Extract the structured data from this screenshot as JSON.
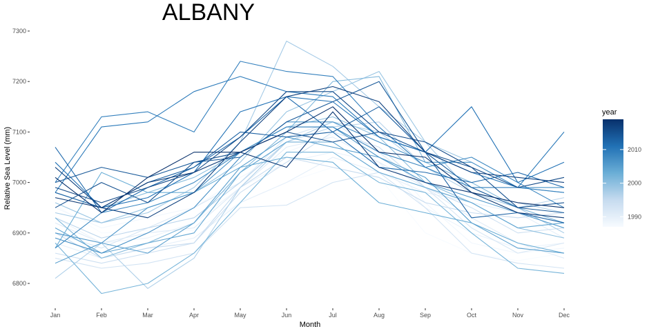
{
  "chart_data": {
    "type": "line",
    "title": "ALBANY",
    "xlabel": "Month",
    "ylabel": "Relative Sea Level (mm)",
    "categories": [
      "Jan",
      "Feb",
      "Mar",
      "Apr",
      "May",
      "Jun",
      "Jul",
      "Aug",
      "Sep",
      "Oct",
      "Nov",
      "Dec"
    ],
    "ylim": [
      6760,
      7310
    ],
    "yticks": [
      6800,
      6900,
      7000,
      7100,
      7200,
      7300
    ],
    "grid": false,
    "legend": {
      "title": "year",
      "position": "right",
      "type": "colorbar",
      "range": [
        1987,
        2019
      ],
      "ticks": [
        1990,
        2000,
        2010
      ],
      "color_low": "#f7fbff",
      "color_high": "#08306b"
    },
    "series": [
      {
        "year": 1987,
        "values": [
          6955,
          6900,
          6905,
          6905,
          6960,
          7000,
          7030,
          7010,
          6900,
          6860,
          6845,
          6860
        ]
      },
      {
        "year": 1988,
        "values": [
          6950,
          6910,
          6930,
          6950,
          7010,
          7060,
          7095,
          7060,
          6960,
          6880,
          6860,
          6870
        ]
      },
      {
        "year": 1989,
        "values": [
          6930,
          6880,
          6890,
          6920,
          6990,
          7040,
          7060,
          7040,
          6950,
          6900,
          6870,
          6880
        ]
      },
      {
        "year": 1990,
        "values": [
          6880,
          6850,
          6870,
          6890,
          6960,
          7000,
          7050,
          7020,
          6980,
          6960,
          6940,
          6890
        ]
      },
      {
        "year": 1991,
        "values": [
          6920,
          6880,
          6900,
          6910,
          6990,
          7070,
          7090,
          7040,
          6990,
          6930,
          6880,
          6850
        ]
      },
      {
        "year": 1992,
        "values": [
          6900,
          6870,
          6910,
          6950,
          7000,
          7090,
          7120,
          7060,
          6990,
          6910,
          6860,
          6880
        ]
      },
      {
        "year": 1993,
        "values": [
          6850,
          6830,
          6840,
          6860,
          6950,
          6955,
          7000,
          7020,
          6950,
          6860,
          6840,
          6830
        ]
      },
      {
        "year": 1994,
        "values": [
          6860,
          6840,
          6860,
          6880,
          6980,
          7040,
          7100,
          7070,
          6990,
          6950,
          6900,
          6910
        ]
      },
      {
        "year": 1995,
        "values": [
          6900,
          6850,
          6870,
          6880,
          6990,
          7050,
          7030,
          7010,
          6960,
          6940,
          6930,
          6940
        ]
      },
      {
        "year": 1996,
        "values": [
          6930,
          6890,
          6910,
          6930,
          7000,
          7080,
          7110,
          7120,
          7030,
          6990,
          6950,
          6970
        ]
      },
      {
        "year": 1997,
        "values": [
          6810,
          6880,
          6790,
          6850,
          6990,
          7080,
          7120,
          7100,
          7030,
          6980,
          6960,
          6940
        ]
      },
      {
        "year": 1998,
        "values": [
          6940,
          6920,
          6940,
          6990,
          7080,
          7280,
          7230,
          7150,
          7080,
          6980,
          6950,
          6900
        ]
      },
      {
        "year": 1999,
        "values": [
          6960,
          6920,
          6950,
          6980,
          7040,
          7140,
          7180,
          7220,
          7080,
          7040,
          6990,
          6980
        ]
      },
      {
        "year": 2000,
        "values": [
          6980,
          6950,
          6980,
          7010,
          7060,
          7110,
          7130,
          7090,
          7000,
          6960,
          6910,
          6890
        ]
      },
      {
        "year": 2001,
        "values": [
          6930,
          6850,
          6880,
          6920,
          7020,
          7100,
          7200,
          7210,
          7040,
          7000,
          6950,
          6920
        ]
      },
      {
        "year": 2002,
        "values": [
          6880,
          6780,
          6800,
          6860,
          6960,
          7060,
          7060,
          7000,
          6980,
          6900,
          6830,
          6820
        ]
      },
      {
        "year": 2003,
        "values": [
          6870,
          7020,
          6980,
          6980,
          7030,
          7050,
          7040,
          6960,
          6940,
          6920,
          6880,
          6860
        ]
      },
      {
        "year": 2004,
        "values": [
          6910,
          6860,
          6880,
          6900,
          7020,
          7080,
          7080,
          7020,
          6990,
          6960,
          6910,
          6920
        ]
      },
      {
        "year": 2005,
        "values": [
          6840,
          6880,
          6860,
          6920,
          7030,
          7090,
          7070,
          7050,
          7010,
          6920,
          6870,
          6860
        ]
      },
      {
        "year": 2006,
        "values": [
          6900,
          6880,
          6950,
          6980,
          7060,
          7110,
          7110,
          7050,
          7000,
          6970,
          6940,
          6910
        ]
      },
      {
        "year": 2007,
        "values": [
          6890,
          6860,
          6900,
          6950,
          7050,
          7120,
          7120,
          7080,
          7040,
          7040,
          6990,
          6990
        ]
      },
      {
        "year": 2008,
        "values": [
          6870,
          6940,
          6960,
          7000,
          7060,
          7110,
          7110,
          7060,
          7030,
          7050,
          7000,
          6950
        ]
      },
      {
        "year": 2009,
        "values": [
          7000,
          7130,
          7140,
          7100,
          7240,
          7220,
          7210,
          7110,
          7030,
          6990,
          6990,
          6980
        ]
      },
      {
        "year": 2010,
        "values": [
          6980,
          7110,
          7120,
          7180,
          7210,
          7180,
          7170,
          7090,
          7060,
          7020,
          6990,
          7100
        ]
      },
      {
        "year": 2011,
        "values": [
          7040,
          6950,
          6970,
          7020,
          7140,
          7170,
          7160,
          7090,
          7060,
          7150,
          7000,
          7040
        ]
      },
      {
        "year": 2012,
        "values": [
          7070,
          6940,
          6990,
          7030,
          7090,
          7170,
          7100,
          7030,
          7020,
          7000,
          7020,
          6990
        ]
      },
      {
        "year": 2013,
        "values": [
          6980,
          6950,
          7000,
          7030,
          7100,
          7090,
          7100,
          7150,
          7060,
          6930,
          6940,
          6920
        ]
      },
      {
        "year": 2014,
        "values": [
          7000,
          7030,
          7010,
          7040,
          7050,
          7120,
          7160,
          7200,
          7060,
          6990,
          6950,
          6940
        ]
      },
      {
        "year": 2015,
        "values": [
          6950,
          7000,
          6960,
          7040,
          7060,
          7100,
          7080,
          7100,
          7060,
          7030,
          6950,
          6960
        ]
      },
      {
        "year": 2016,
        "values": [
          6990,
          6960,
          6990,
          7020,
          7090,
          7180,
          7180,
          7100,
          7080,
          7030,
          6990,
          7010
        ]
      },
      {
        "year": 2017,
        "values": [
          7030,
          6950,
          6930,
          6980,
          7080,
          7170,
          7190,
          7160,
          7060,
          7020,
          7010,
          7000
        ]
      },
      {
        "year": 2018,
        "values": [
          6970,
          6950,
          7000,
          7020,
          7060,
          7030,
          7140,
          7030,
          7000,
          6980,
          6940,
          6930
        ]
      },
      {
        "year": 2019,
        "values": [
          7010,
          6940,
          7010,
          7060,
          7060,
          7100,
          7150,
          7060,
          7050,
          6980,
          6960,
          6950
        ]
      }
    ]
  }
}
